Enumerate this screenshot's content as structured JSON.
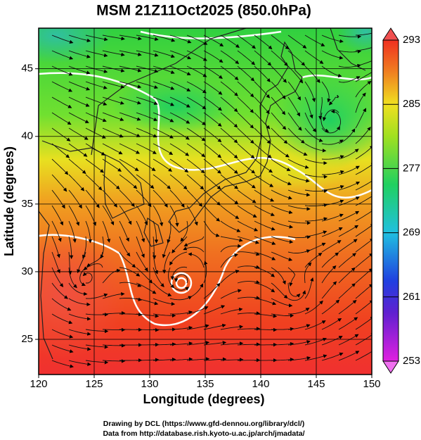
{
  "chart_data": {
    "type": "map",
    "title": "MSM 21Z11Oct2025 (850.0hPa)",
    "xlabel": "Longitude (degrees)",
    "ylabel": "Latitude  (degrees)",
    "xlim": [
      120,
      150
    ],
    "ylim": [
      22.4,
      48
    ],
    "xticks": [
      120,
      125,
      130,
      135,
      140,
      145,
      150
    ],
    "yticks": [
      25,
      30,
      35,
      40,
      45
    ],
    "grid": true,
    "colorbar": {
      "lim": [
        253,
        293
      ],
      "ticks": [
        253,
        261,
        269,
        277,
        285,
        293
      ]
    },
    "credits": [
      "Drawing by DCL (https://www.gfd-dennou.org/library/dcl/)",
      "Data from http://database.rish.kyoto-u.ac.jp/arch/jmadata/"
    ]
  }
}
